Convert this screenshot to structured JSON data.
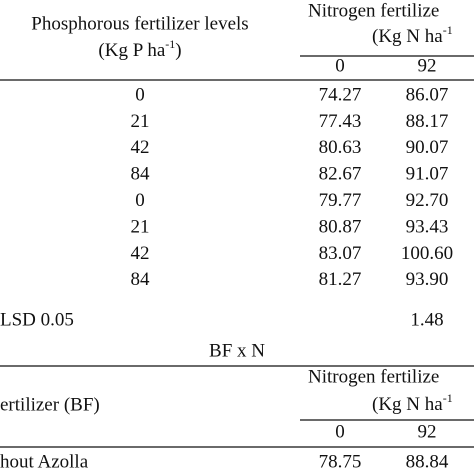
{
  "table1": {
    "header": {
      "row_label": "Phosphorous fertilizer levels",
      "row_unit_prefix": "(Kg P ha",
      "row_unit_sup": "-1",
      "row_unit_suffix": ")",
      "col_group": "Nitrogen fertilize",
      "col_unit_prefix": "(Kg N ha",
      "col_unit_sup": "-1",
      "columns": [
        "0",
        "92"
      ]
    },
    "rows": [
      [
        "0",
        "74.27",
        "86.07"
      ],
      [
        "21",
        "77.43",
        "88.17"
      ],
      [
        "42",
        "80.63",
        "90.07"
      ],
      [
        "84",
        "82.67",
        "91.07"
      ],
      [
        "0",
        "79.77",
        "92.70"
      ],
      [
        "21",
        "80.87",
        "93.43"
      ],
      [
        "42",
        "83.07",
        "100.60"
      ],
      [
        "84",
        "81.27",
        "93.90"
      ]
    ],
    "lsd": {
      "label": "LSD 0.05",
      "value": "1.48"
    }
  },
  "table2": {
    "title": "BF x N",
    "header": {
      "row_label": "ertilizer (BF)",
      "col_group": "Nitrogen fertilize",
      "col_unit_prefix": "(Kg N ha",
      "col_unit_sup": "-1",
      "columns": [
        "0",
        "92"
      ]
    },
    "rows": [
      [
        "hout Azolla",
        "78.75",
        "88.84"
      ]
    ]
  }
}
